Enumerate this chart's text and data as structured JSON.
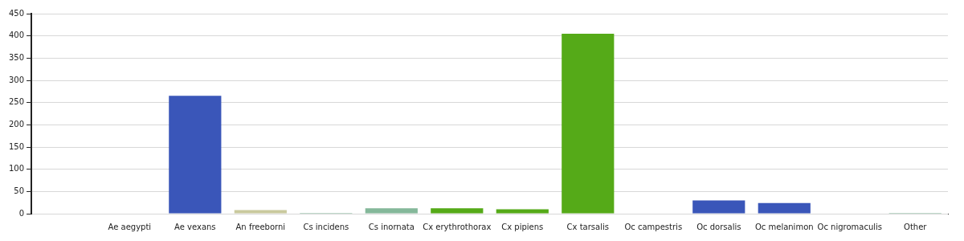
{
  "chart_data": {
    "type": "bar",
    "categories": [
      null,
      "Ae aegypti",
      "Ae vexans",
      "An freeborni",
      "Cs incidens",
      "Cs inornata",
      "Cx erythrothorax",
      "Cx pipiens",
      "Cx tarsalis",
      "Oc campestris",
      "Oc dorsalis",
      "Oc melanimon",
      "Oc nigromaculis",
      "Other"
    ],
    "values": [
      0,
      0,
      265,
      8,
      2,
      12,
      12,
      10,
      405,
      0,
      30,
      24,
      0,
      2
    ],
    "colors": [
      "#3a56b9",
      "#3a56b9",
      "#3a56b9",
      "#c9c99d",
      "#84b89a",
      "#84b89a",
      "#55aa18",
      "#55aa18",
      "#55aa18",
      "#3a56b9",
      "#3a56b9",
      "#3a56b9",
      "#3a56b9",
      "#84b89a"
    ],
    "ylim": [
      0,
      450
    ],
    "yticks": [
      0,
      50,
      100,
      150,
      200,
      250,
      300,
      350,
      400,
      450
    ],
    "grid": "y",
    "legend": false
  }
}
